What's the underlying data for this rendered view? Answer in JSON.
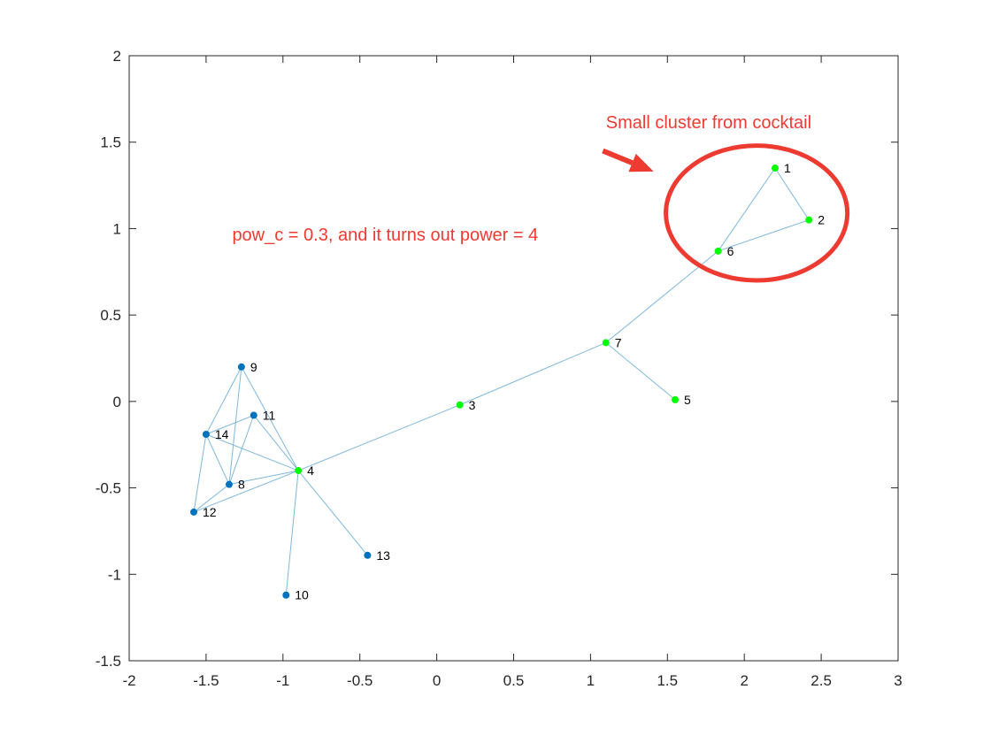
{
  "chart_data": {
    "type": "scatter",
    "title": "",
    "xlabel": "",
    "ylabel": "",
    "xlim": [
      -2,
      3
    ],
    "ylim": [
      -1.5,
      2
    ],
    "xticks": [
      -2,
      -1.5,
      -1,
      -0.5,
      0,
      0.5,
      1,
      1.5,
      2,
      2.5,
      3
    ],
    "yticks": [
      -1.5,
      -1,
      -0.5,
      0,
      0.5,
      1,
      1.5,
      2
    ],
    "xtick_labels": [
      "-2",
      "-1.5",
      "-1",
      "-0.5",
      "0",
      "0.5",
      "1",
      "1.5",
      "2",
      "2.5",
      "3"
    ],
    "ytick_labels": [
      "-1.5",
      "-1",
      "-0.5",
      "0",
      "0.5",
      "1",
      "1.5",
      "2"
    ],
    "grid": false,
    "nodes": [
      {
        "id": "1",
        "x": 2.2,
        "y": 1.35,
        "group": "cocktail"
      },
      {
        "id": "2",
        "x": 2.42,
        "y": 1.05,
        "group": "cocktail"
      },
      {
        "id": "3",
        "x": 0.15,
        "y": -0.02,
        "group": "cocktail"
      },
      {
        "id": "4",
        "x": -0.9,
        "y": -0.4,
        "group": "cocktail"
      },
      {
        "id": "5",
        "x": 1.55,
        "y": 0.01,
        "group": "cocktail"
      },
      {
        "id": "6",
        "x": 1.83,
        "y": 0.87,
        "group": "cocktail"
      },
      {
        "id": "7",
        "x": 1.1,
        "y": 0.34,
        "group": "cocktail"
      },
      {
        "id": "8",
        "x": -1.35,
        "y": -0.48,
        "group": "other"
      },
      {
        "id": "9",
        "x": -1.27,
        "y": 0.2,
        "group": "other"
      },
      {
        "id": "10",
        "x": -0.98,
        "y": -1.12,
        "group": "other"
      },
      {
        "id": "11",
        "x": -1.19,
        "y": -0.08,
        "group": "other"
      },
      {
        "id": "12",
        "x": -1.58,
        "y": -0.64,
        "group": "other"
      },
      {
        "id": "13",
        "x": -0.45,
        "y": -0.89,
        "group": "other"
      },
      {
        "id": "14",
        "x": -1.5,
        "y": -0.19,
        "group": "other"
      }
    ],
    "edges": [
      [
        "1",
        "2"
      ],
      [
        "1",
        "6"
      ],
      [
        "2",
        "6"
      ],
      [
        "6",
        "7"
      ],
      [
        "7",
        "5"
      ],
      [
        "7",
        "3"
      ],
      [
        "3",
        "4"
      ],
      [
        "4",
        "10"
      ],
      [
        "4",
        "13"
      ],
      [
        "4",
        "8"
      ],
      [
        "4",
        "14"
      ],
      [
        "4",
        "11"
      ],
      [
        "4",
        "9"
      ],
      [
        "4",
        "12"
      ],
      [
        "9",
        "14"
      ],
      [
        "9",
        "8"
      ],
      [
        "14",
        "11"
      ],
      [
        "14",
        "8"
      ],
      [
        "14",
        "12"
      ],
      [
        "11",
        "8"
      ],
      [
        "8",
        "12"
      ]
    ],
    "annotations": [
      {
        "text": "Small cluster from cocktail",
        "x": 1.1,
        "y": 1.58
      },
      {
        "text": "pow_c = 0.3, and it turns out power = 4",
        "x": -1.33,
        "y": 0.93
      }
    ],
    "highlight": {
      "center_x": 2.08,
      "center_y": 1.09,
      "radius_x": 0.59,
      "radius_y": 0.39
    },
    "arrow": {
      "from_x": 1.08,
      "from_y": 1.45,
      "to_x": 1.41,
      "to_y": 1.33
    }
  },
  "colors": {
    "cocktail_node": "#00ff00",
    "other_node": "#0072bd",
    "edge": "#7fb8dc",
    "annotation": "#ee3b32",
    "axis": "#262626"
  }
}
